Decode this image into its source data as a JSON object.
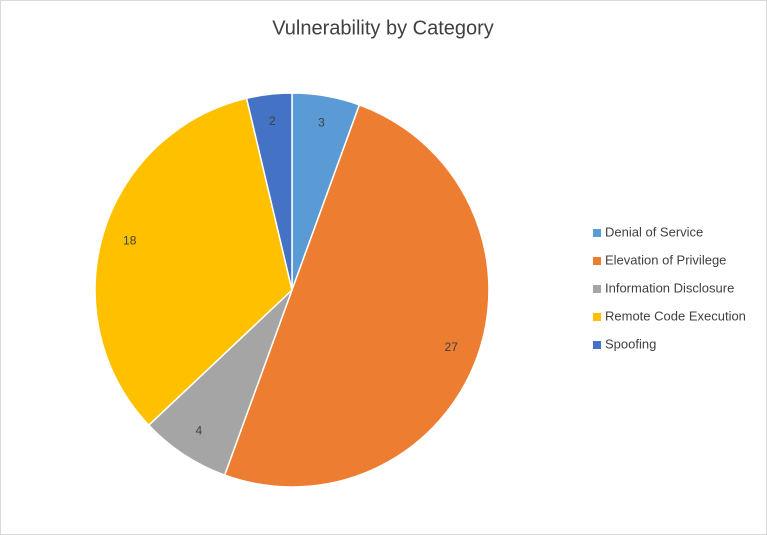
{
  "chart_data": {
    "type": "pie",
    "title": "Vulnerability by Category",
    "categories": [
      "Denial of Service",
      "Elevation of Privilege",
      "Information Disclosure",
      "Remote Code Execution",
      "Spoofing"
    ],
    "values": [
      3,
      27,
      4,
      18,
      2
    ],
    "colors": [
      "#5b9bd5",
      "#ed7d31",
      "#a5a5a5",
      "#ffc000",
      "#4472c4"
    ],
    "legend": "right"
  }
}
